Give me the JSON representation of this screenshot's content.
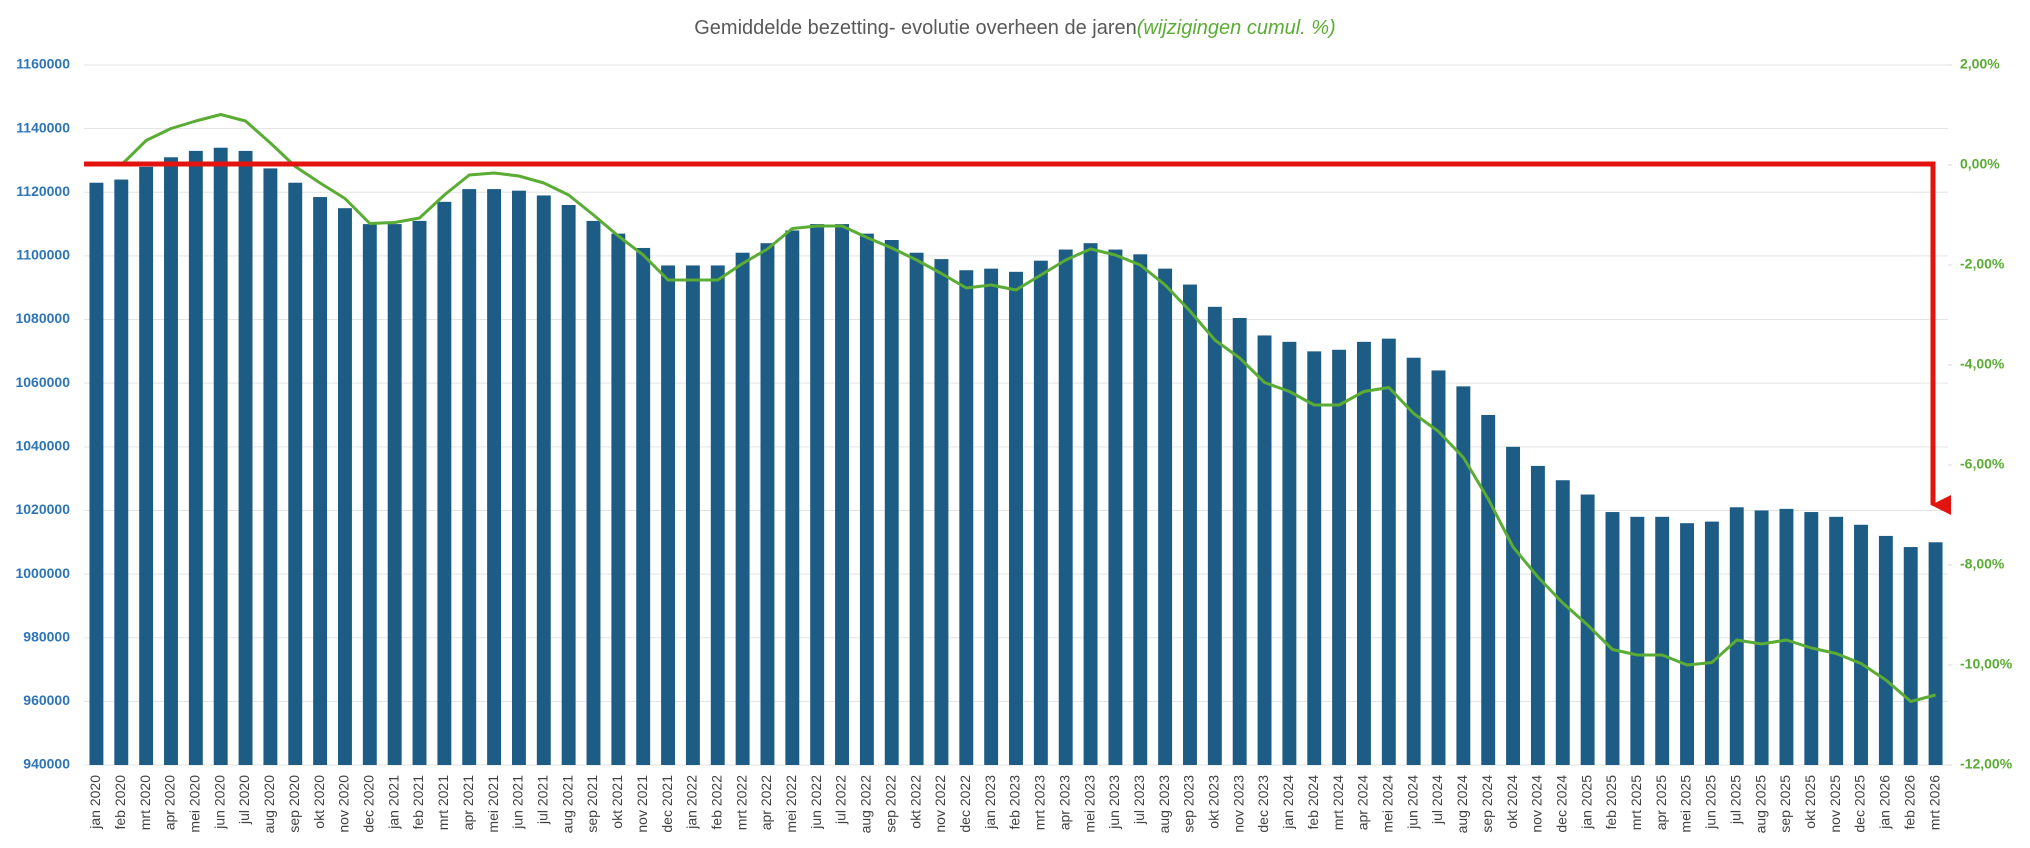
{
  "chart_data": {
    "type": "bar",
    "title": "Gemiddelde bezetting- evolutie overheen de jaren",
    "subtitle": "(wijzigingen cumul. %)",
    "categories": [
      "jan 2020",
      "feb 2020",
      "mrt 2020",
      "apr 2020",
      "mei 2020",
      "jun 2020",
      "jul 2020",
      "aug 2020",
      "sep 2020",
      "okt 2020",
      "nov 2020",
      "dec 2020",
      "jan 2021",
      "feb 2021",
      "mrt 2021",
      "apr 2021",
      "mei 2021",
      "jun 2021",
      "jul 2021",
      "aug 2021",
      "sep 2021",
      "okt 2021",
      "nov 2021",
      "dec 2021",
      "jan 2022",
      "feb 2022",
      "mrt 2022",
      "apr 2022",
      "mei 2022",
      "jun 2022",
      "jul 2022",
      "aug 2022",
      "sep 2022",
      "okt 2022",
      "nov 2022",
      "dec 2022",
      "jan 2023",
      "feb 2023",
      "mrt 2023",
      "apr 2023",
      "mei 2023",
      "jun 2023",
      "jul 2023",
      "aug 2023",
      "sep 2023",
      "okt 2023",
      "nov 2023",
      "dec 2023",
      "jan 2024",
      "feb 2024",
      "mrt 2024",
      "apr 2024",
      "mei 2024",
      "jun 2024",
      "jul 2024",
      "aug 2024",
      "sep 2024",
      "okt 2024",
      "nov 2024",
      "dec 2024",
      "jan 2025",
      "feb 2025",
      "mrt 2025",
      "apr 2025",
      "mei 2025",
      "jun 2025",
      "jul 2025",
      "aug 2025",
      "sep 2025",
      "okt 2025",
      "nov 2025",
      "dec 2025",
      "jan 2026",
      "feb 2026",
      "mrt 2026"
    ],
    "series": [
      {
        "type": "bar",
        "color": "#1d5c85",
        "values": [
          1123000,
          1124000,
          1128000,
          1131000,
          1133000,
          1134000,
          1133000,
          1127500,
          1123000,
          1118500,
          1115000,
          1110000,
          1110000,
          1111000,
          1117000,
          1121000,
          1121000,
          1120500,
          1119000,
          1116000,
          1111000,
          1107000,
          1102500,
          1097000,
          1097000,
          1097000,
          1101000,
          1104000,
          1108000,
          1110000,
          1110000,
          1107000,
          1105000,
          1101000,
          1099000,
          1095500,
          1096000,
          1095000,
          1098500,
          1102000,
          1104000,
          1102000,
          1100500,
          1096000,
          1091000,
          1084000,
          1080500,
          1075000,
          1073000,
          1070000,
          1070500,
          1073000,
          1074000,
          1068000,
          1064000,
          1059000,
          1050000,
          1040000,
          1034000,
          1029500,
          1025000,
          1019500,
          1018000,
          1018000,
          1016000,
          1016500,
          1021000,
          1020000,
          1020500,
          1019500,
          1018000,
          1015500,
          1012000,
          1008500,
          1010000
        ]
      },
      {
        "type": "line",
        "axis": "y2",
        "color": "#5aac34",
        "values": [
          null,
          0,
          0.49,
          0.73,
          0.88,
          1.01,
          0.88,
          0.44,
          -0.03,
          -0.36,
          -0.67,
          -1.17,
          -1.15,
          -1.06,
          -0.6,
          -0.2,
          -0.16,
          -0.22,
          -0.36,
          -0.6,
          -1.0,
          -1.42,
          -1.8,
          -2.3,
          -2.3,
          -2.3,
          -1.97,
          -1.68,
          -1.27,
          -1.22,
          -1.22,
          -1.45,
          -1.66,
          -1.9,
          -2.17,
          -2.46,
          -2.4,
          -2.5,
          -2.2,
          -1.9,
          -1.68,
          -1.8,
          -2.0,
          -2.4,
          -2.92,
          -3.5,
          -3.86,
          -4.35,
          -4.53,
          -4.8,
          -4.8,
          -4.53,
          -4.45,
          -4.97,
          -5.33,
          -5.85,
          -6.68,
          -7.64,
          -8.24,
          -8.76,
          -9.2,
          -9.69,
          -9.8,
          -9.8,
          -10.0,
          -9.95,
          -9.5,
          -9.58,
          -9.5,
          -9.66,
          -9.77,
          -9.97,
          -10.3,
          -10.73,
          -10.6
        ]
      }
    ],
    "ylim": [
      940000,
      1160000
    ],
    "yticks": [
      940000,
      960000,
      980000,
      1000000,
      1020000,
      1040000,
      1060000,
      1080000,
      1100000,
      1120000,
      1140000,
      1160000
    ],
    "y2lim": [
      -12,
      2
    ],
    "y2ticks": [
      {
        "value": -12,
        "label": "-12,00%"
      },
      {
        "value": -10,
        "label": "-10,00%"
      },
      {
        "value": -8,
        "label": "-8,00%"
      },
      {
        "value": -6,
        "label": "-6,00%"
      },
      {
        "value": -4,
        "label": "-4,00%"
      },
      {
        "value": -2,
        "label": "-2,00%"
      },
      {
        "value": 0,
        "label": "0,00%"
      },
      {
        "value": 2,
        "label": "2,00%"
      }
    ],
    "grid": true,
    "ytick_color": "#2e75b6",
    "y2tick_color": "#5aac34"
  }
}
